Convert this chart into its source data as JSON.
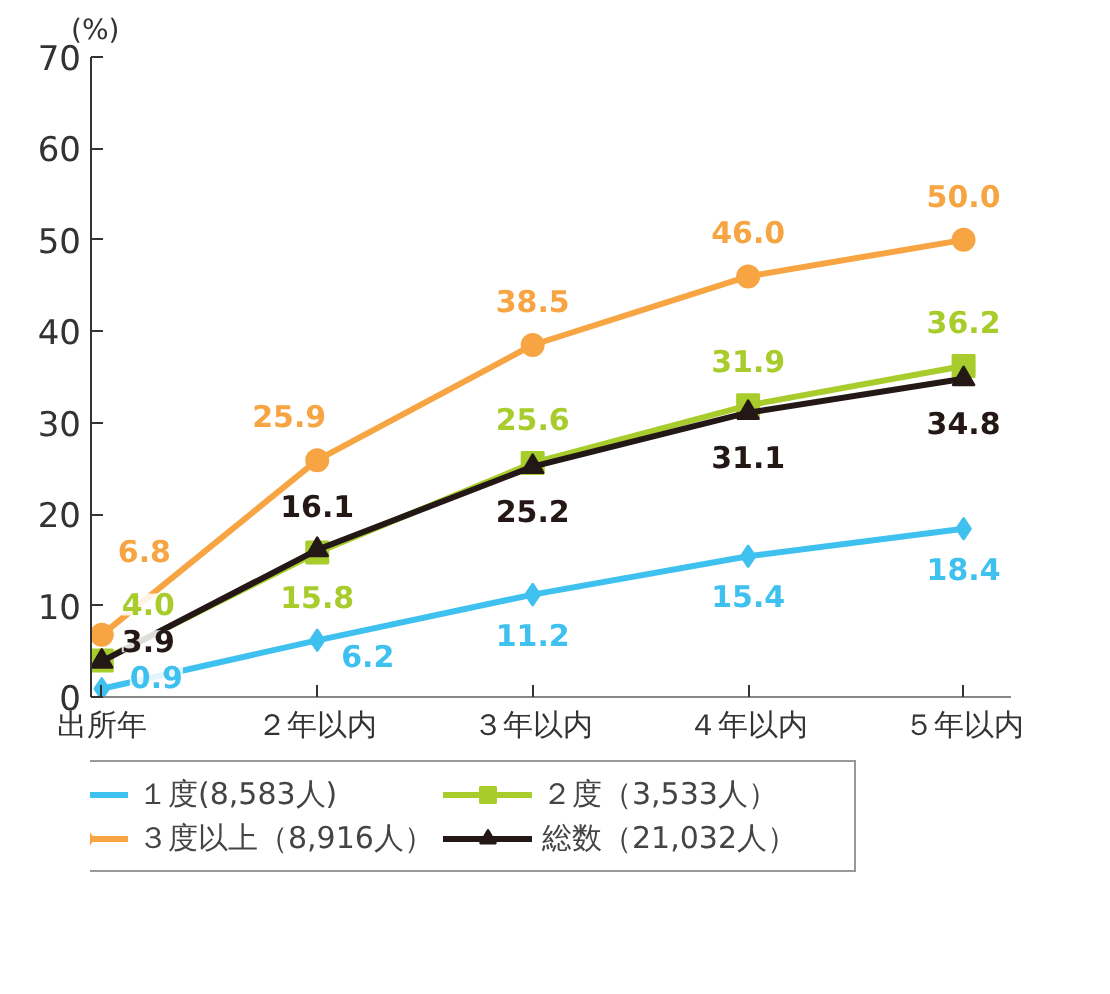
{
  "chart_data": {
    "type": "line",
    "ylabel": "(%)",
    "categories": [
      "出所年",
      "２年以内",
      "３年以内",
      "４年以内",
      "５年以内"
    ],
    "ylim": [
      0,
      70
    ],
    "yticks": [
      0,
      10,
      20,
      30,
      40,
      50,
      60,
      70
    ],
    "grid": false,
    "legend": "bottom",
    "series": [
      {
        "name": "１度(8,583人)",
        "color": "#3fc1ef",
        "marker": "diamond",
        "values": [
          0.9,
          6.2,
          11.2,
          15.4,
          18.4
        ],
        "value_labels": [
          "0.9",
          "6.2",
          "11.2",
          "15.4",
          "18.4"
        ]
      },
      {
        "name": "２度（3,533人）",
        "color": "#a8cc2c",
        "marker": "square",
        "values": [
          4.0,
          15.8,
          25.6,
          31.9,
          36.2
        ],
        "value_labels": [
          "4.0",
          "15.8",
          "25.6",
          "31.9",
          "36.2"
        ]
      },
      {
        "name": "３度以上（8,916人）",
        "color": "#f7a543",
        "marker": "circle",
        "values": [
          6.8,
          25.9,
          38.5,
          46.0,
          50.0
        ],
        "value_labels": [
          "6.8",
          "25.9",
          "38.5",
          "46.0",
          "50.0"
        ]
      },
      {
        "name": "総数（21,032人）",
        "color": "#231815",
        "marker": "triangle",
        "values": [
          3.9,
          16.1,
          25.2,
          31.1,
          34.8
        ],
        "value_labels": [
          "3.9",
          "16.1",
          "25.2",
          "31.1",
          "34.8"
        ]
      }
    ]
  }
}
